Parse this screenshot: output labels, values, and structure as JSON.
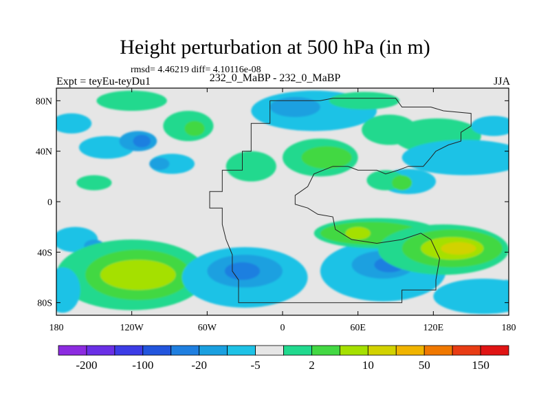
{
  "header": {
    "title": "Height perturbation at 500 hPa (in m)",
    "stats": "rmsd= 4.46219 diff= 4.10116e-08",
    "expt": "Expt = teyEu-teyDu1",
    "center_label": "232_0_MaBP - 232_0_MaBP",
    "season": "JJA"
  },
  "chart_data": {
    "type": "heatmap",
    "title": "Height perturbation at 500 hPa (in m)",
    "x_range": [
      -180,
      180
    ],
    "y_range": [
      -90,
      90
    ],
    "x_ticks": [
      {
        "value": -180,
        "label": "180"
      },
      {
        "value": -120,
        "label": "120W"
      },
      {
        "value": -60,
        "label": "60W"
      },
      {
        "value": 0,
        "label": "0"
      },
      {
        "value": 60,
        "label": "60E"
      },
      {
        "value": 120,
        "label": "120E"
      },
      {
        "value": 180,
        "label": "180"
      }
    ],
    "y_ticks": [
      {
        "value": 80,
        "label": "80N"
      },
      {
        "value": 40,
        "label": "40N"
      },
      {
        "value": 0,
        "label": "0"
      },
      {
        "value": -40,
        "label": "40S"
      },
      {
        "value": -80,
        "label": "80S"
      }
    ],
    "colorbar": {
      "colors": [
        "#8c2be0",
        "#6a2fe6",
        "#3c3ce6",
        "#2255dd",
        "#1f7fe0",
        "#1aa0e0",
        "#1ec2e6",
        "#e6e6e6",
        "#21d98e",
        "#43d843",
        "#a5e000",
        "#d2d200",
        "#f0b400",
        "#f07800",
        "#e83c14",
        "#e01414"
      ],
      "labels": [
        {
          "index": 1,
          "text": "-200"
        },
        {
          "index": 3,
          "text": "-100"
        },
        {
          "index": 5,
          "text": "-20"
        },
        {
          "index": 7,
          "text": "-5"
        },
        {
          "index": 9,
          "text": "2"
        },
        {
          "index": 11,
          "text": "10"
        },
        {
          "index": 13,
          "text": "50"
        },
        {
          "index": 15,
          "text": "150"
        }
      ]
    },
    "fields": [
      {
        "lon": -120,
        "lat": 80,
        "rx": 28,
        "ry": 8,
        "level": 8
      },
      {
        "lon": -75,
        "lat": 60,
        "rx": 20,
        "ry": 12,
        "level": 8
      },
      {
        "lon": -70,
        "lat": 58,
        "rx": 8,
        "ry": 6,
        "level": 9
      },
      {
        "lon": -168,
        "lat": 62,
        "rx": 16,
        "ry": 8,
        "level": 6
      },
      {
        "lon": -140,
        "lat": 43,
        "rx": 22,
        "ry": 9,
        "level": 6
      },
      {
        "lon": -115,
        "lat": 48,
        "rx": 15,
        "ry": 8,
        "level": 5
      },
      {
        "lon": -112,
        "lat": 48,
        "rx": 7,
        "ry": 5,
        "level": 4
      },
      {
        "lon": -88,
        "lat": 30,
        "rx": 18,
        "ry": 8,
        "level": 6
      },
      {
        "lon": -98,
        "lat": 30,
        "rx": 8,
        "ry": 5,
        "level": 5
      },
      {
        "lon": -150,
        "lat": 15,
        "rx": 14,
        "ry": 6,
        "level": 8
      },
      {
        "lon": -25,
        "lat": 28,
        "rx": 20,
        "ry": 12,
        "level": 8
      },
      {
        "lon": 30,
        "lat": 35,
        "rx": 30,
        "ry": 15,
        "level": 8
      },
      {
        "lon": 35,
        "lat": 35,
        "rx": 20,
        "ry": 9,
        "level": 9
      },
      {
        "lon": 25,
        "lat": 72,
        "rx": 50,
        "ry": 16,
        "level": 6
      },
      {
        "lon": 10,
        "lat": 75,
        "rx": 20,
        "ry": 8,
        "level": 5
      },
      {
        "lon": 65,
        "lat": 80,
        "rx": 28,
        "ry": 7,
        "level": 8
      },
      {
        "lon": 85,
        "lat": 57,
        "rx": 22,
        "ry": 12,
        "level": 8
      },
      {
        "lon": 123,
        "lat": 52,
        "rx": 35,
        "ry": 14,
        "level": 8
      },
      {
        "lon": 145,
        "lat": 35,
        "rx": 50,
        "ry": 14,
        "level": 6
      },
      {
        "lon": 168,
        "lat": 60,
        "rx": 18,
        "ry": 8,
        "level": 6
      },
      {
        "lon": 100,
        "lat": 16,
        "rx": 22,
        "ry": 10,
        "level": 6
      },
      {
        "lon": 82,
        "lat": 17,
        "rx": 15,
        "ry": 8,
        "level": 8
      },
      {
        "lon": 95,
        "lat": 15,
        "rx": 8,
        "ry": 6,
        "level": 9
      },
      {
        "lon": -165,
        "lat": -30,
        "rx": 18,
        "ry": 10,
        "level": 6
      },
      {
        "lon": -150,
        "lat": -35,
        "rx": 8,
        "ry": 5,
        "level": 5
      },
      {
        "lon": -120,
        "lat": -58,
        "rx": 60,
        "ry": 28,
        "level": 8
      },
      {
        "lon": -115,
        "lat": -58,
        "rx": 42,
        "ry": 20,
        "level": 9
      },
      {
        "lon": -115,
        "lat": -58,
        "rx": 30,
        "ry": 12,
        "level": 10
      },
      {
        "lon": -30,
        "lat": -60,
        "rx": 50,
        "ry": 24,
        "level": 6
      },
      {
        "lon": -30,
        "lat": -55,
        "rx": 30,
        "ry": 13,
        "level": 5
      },
      {
        "lon": -32,
        "lat": -55,
        "rx": 14,
        "ry": 7,
        "level": 4
      },
      {
        "lon": 80,
        "lat": -55,
        "rx": 50,
        "ry": 24,
        "level": 6
      },
      {
        "lon": 80,
        "lat": -50,
        "rx": 25,
        "ry": 11,
        "level": 5
      },
      {
        "lon": 85,
        "lat": -50,
        "rx": 12,
        "ry": 6,
        "level": 4
      },
      {
        "lon": 160,
        "lat": -75,
        "rx": 40,
        "ry": 14,
        "level": 6
      },
      {
        "lon": -175,
        "lat": -70,
        "rx": 14,
        "ry": 18,
        "level": 6
      },
      {
        "lon": 75,
        "lat": -25,
        "rx": 50,
        "ry": 12,
        "level": 8
      },
      {
        "lon": 70,
        "lat": -25,
        "rx": 40,
        "ry": 9,
        "level": 9
      },
      {
        "lon": 60,
        "lat": -25,
        "rx": 10,
        "ry": 5,
        "level": 10
      },
      {
        "lon": 128,
        "lat": -38,
        "rx": 52,
        "ry": 20,
        "level": 8
      },
      {
        "lon": 135,
        "lat": -37,
        "rx": 40,
        "ry": 15,
        "level": 9
      },
      {
        "lon": 135,
        "lat": -37,
        "rx": 25,
        "ry": 9,
        "level": 10
      },
      {
        "lon": 140,
        "lat": -37,
        "rx": 14,
        "ry": 5,
        "level": 11
      },
      {
        "lon": 178,
        "lat": -72,
        "rx": 8,
        "ry": 10,
        "level": 6
      }
    ],
    "outline": [
      [
        -10,
        80
      ],
      [
        -10,
        62
      ],
      [
        -25,
        62
      ],
      [
        -25,
        40
      ],
      [
        -32,
        40
      ],
      [
        -32,
        25
      ],
      [
        -48,
        25
      ],
      [
        -48,
        8
      ],
      [
        -58,
        8
      ],
      [
        -58,
        -5
      ],
      [
        -48,
        -5
      ],
      [
        -48,
        -18
      ],
      [
        -45,
        -30
      ],
      [
        -40,
        -42
      ],
      [
        -40,
        -55
      ],
      [
        -35,
        -62
      ],
      [
        -35,
        -80
      ],
      [
        95,
        -80
      ],
      [
        95,
        -70
      ],
      [
        122,
        -70
      ],
      [
        122,
        -62
      ],
      [
        125,
        -45
      ],
      [
        118,
        -30
      ],
      [
        110,
        -25
      ],
      [
        95,
        -30
      ],
      [
        75,
        -33
      ],
      [
        55,
        -30
      ],
      [
        42,
        -22
      ],
      [
        40,
        -12
      ],
      [
        28,
        -10
      ],
      [
        20,
        -5
      ],
      [
        10,
        -2
      ],
      [
        10,
        5
      ],
      [
        20,
        12
      ],
      [
        25,
        22
      ],
      [
        40,
        28
      ],
      [
        52,
        28
      ],
      [
        60,
        25
      ],
      [
        75,
        25
      ],
      [
        82,
        22
      ],
      [
        92,
        25
      ],
      [
        100,
        28
      ],
      [
        112,
        28
      ],
      [
        118,
        35
      ],
      [
        122,
        40
      ],
      [
        132,
        45
      ],
      [
        142,
        48
      ],
      [
        142,
        55
      ],
      [
        150,
        60
      ],
      [
        150,
        70
      ],
      [
        128,
        72
      ],
      [
        118,
        75
      ],
      [
        95,
        75
      ],
      [
        90,
        82
      ],
      [
        60,
        82
      ],
      [
        40,
        82
      ],
      [
        30,
        80
      ],
      [
        5,
        80
      ],
      [
        -10,
        80
      ]
    ]
  }
}
